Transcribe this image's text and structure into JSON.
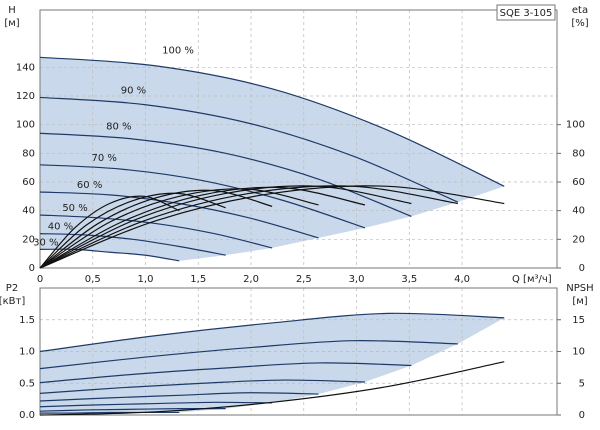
{
  "chart_data": [
    {
      "type": "line",
      "title": "SQE 3-105",
      "y_label": "H",
      "y_unit": "[м]",
      "y2_label": "eta",
      "y2_unit": "[%]",
      "x_label": "Q [м³/ч]",
      "xlim": [
        0,
        4.9
      ],
      "xticks": [
        0,
        {
          "value": 0.5,
          "label": "0,5"
        },
        {
          "value": 1,
          "label": "1,0"
        },
        {
          "value": 1.5,
          "label": "1,5"
        },
        {
          "value": 2,
          "label": "2,0"
        },
        {
          "value": 2.5,
          "label": "2,5"
        },
        {
          "value": 3,
          "label": "3,0"
        },
        {
          "value": 3.5,
          "label": "3,5"
        },
        {
          "value": 4,
          "label": "4,0"
        }
      ],
      "ylim": [
        0,
        180
      ],
      "yticks": [
        0,
        20,
        40,
        60,
        80,
        100,
        120,
        140
      ],
      "y2lim": [
        0,
        180
      ],
      "y2ticks": [
        0,
        20,
        40,
        60,
        80,
        100
      ],
      "grid": true,
      "shade_color": "#c9d9eb",
      "series": [
        {
          "name": "100 %",
          "color": "#1f3a68",
          "x": [
            0,
            1.1,
            2.2,
            3.3,
            4.4
          ],
          "values": [
            147,
            141,
            125,
            96,
            57
          ]
        },
        {
          "name": "90 %",
          "color": "#1f3a68",
          "x": [
            0,
            0.99,
            1.98,
            2.97,
            3.96
          ],
          "values": [
            119,
            114,
            101,
            78,
            46
          ]
        },
        {
          "name": "80 %",
          "color": "#1f3a68",
          "x": [
            0,
            0.88,
            1.76,
            2.64,
            3.52
          ],
          "values": [
            94,
            90,
            80,
            62,
            36
          ]
        },
        {
          "name": "70 %",
          "color": "#1f3a68",
          "x": [
            0,
            0.77,
            1.54,
            2.31,
            3.08
          ],
          "values": [
            72,
            69,
            61,
            47,
            28
          ]
        },
        {
          "name": "60 %",
          "color": "#1f3a68",
          "x": [
            0,
            0.66,
            1.32,
            1.98,
            2.64
          ],
          "values": [
            53,
            51,
            45,
            35,
            21
          ]
        },
        {
          "name": "50 %",
          "color": "#1f3a68",
          "x": [
            0,
            0.55,
            1.1,
            1.65,
            2.2
          ],
          "values": [
            37,
            35,
            31,
            24,
            14
          ]
        },
        {
          "name": "40 %",
          "color": "#1f3a68",
          "x": [
            0,
            0.44,
            0.88,
            1.32,
            1.76
          ],
          "values": [
            24,
            23,
            20,
            15,
            9
          ]
        },
        {
          "name": "30 %",
          "color": "#1f3a68",
          "x": [
            0,
            0.33,
            0.66,
            0.99,
            1.32
          ],
          "values": [
            13,
            13,
            11,
            9,
            5
          ]
        },
        {
          "color": "#111111",
          "axis": "y2",
          "x": [
            0,
            1.1,
            2.2,
            3.3,
            4.4
          ],
          "values": [
            0,
            33,
            52,
            57,
            45
          ]
        },
        {
          "color": "#111111",
          "axis": "y2",
          "x": [
            0,
            0.99,
            1.98,
            2.97,
            3.96
          ],
          "values": [
            0,
            33,
            52,
            57,
            45
          ]
        },
        {
          "color": "#111111",
          "axis": "y2",
          "x": [
            0,
            0.88,
            1.76,
            2.64,
            3.52
          ],
          "values": [
            0,
            33,
            52,
            57,
            45
          ]
        },
        {
          "color": "#111111",
          "axis": "y2",
          "x": [
            0,
            0.77,
            1.54,
            2.31,
            3.08
          ],
          "values": [
            0,
            32,
            51,
            56,
            44
          ]
        },
        {
          "color": "#111111",
          "axis": "y2",
          "x": [
            0,
            0.66,
            1.32,
            1.98,
            2.64
          ],
          "values": [
            0,
            32,
            50,
            55,
            44
          ]
        },
        {
          "color": "#111111",
          "axis": "y2",
          "x": [
            0,
            0.55,
            1.1,
            1.65,
            2.2
          ],
          "values": [
            0,
            31,
            49,
            54,
            43
          ]
        },
        {
          "color": "#111111",
          "axis": "y2",
          "x": [
            0,
            0.44,
            0.88,
            1.32,
            1.76
          ],
          "values": [
            0,
            30,
            47,
            52,
            42
          ]
        },
        {
          "color": "#111111",
          "axis": "y2",
          "x": [
            0,
            0.33,
            0.66,
            0.99,
            1.32
          ],
          "values": [
            0,
            28,
            45,
            50,
            40
          ]
        }
      ]
    },
    {
      "type": "line",
      "y_label": "P2",
      "y_unit": "[кВт]",
      "y2_label": "NPSH",
      "y2_unit": "[м]",
      "xlim": [
        0,
        4.9
      ],
      "xticks": [
        0,
        0.5,
        1,
        1.5,
        2,
        2.5,
        3,
        3.5,
        4
      ],
      "ylim": [
        0,
        2
      ],
      "yticks": [
        {
          "value": 0,
          "label": "0.0"
        },
        {
          "value": 0.5,
          "label": "0.5"
        },
        {
          "value": 1,
          "label": "1.0"
        },
        {
          "value": 1.5,
          "label": "1.5"
        }
      ],
      "y2lim": [
        0,
        20
      ],
      "y2ticks": [
        0,
        5,
        10,
        15
      ],
      "grid": true,
      "shade_color": "#c9d9eb",
      "series": [
        {
          "color": "#1f3a68",
          "x": [
            0,
            1.1,
            2.2,
            3.3,
            4.4
          ],
          "values": [
            1.0,
            1.25,
            1.45,
            1.6,
            1.53
          ]
        },
        {
          "color": "#1f3a68",
          "x": [
            0,
            0.99,
            1.98,
            2.97,
            3.96
          ],
          "values": [
            0.73,
            0.91,
            1.06,
            1.17,
            1.12
          ]
        },
        {
          "color": "#1f3a68",
          "x": [
            0,
            0.88,
            1.76,
            2.64,
            3.52
          ],
          "values": [
            0.51,
            0.64,
            0.74,
            0.82,
            0.78
          ]
        },
        {
          "color": "#1f3a68",
          "x": [
            0,
            0.77,
            1.54,
            2.31,
            3.08
          ],
          "values": [
            0.34,
            0.43,
            0.5,
            0.55,
            0.52
          ]
        },
        {
          "color": "#1f3a68",
          "x": [
            0,
            0.66,
            1.32,
            1.98,
            2.64
          ],
          "values": [
            0.22,
            0.27,
            0.31,
            0.35,
            0.33
          ]
        },
        {
          "color": "#1f3a68",
          "x": [
            0,
            0.55,
            1.1,
            1.65,
            2.2
          ],
          "values": [
            0.13,
            0.16,
            0.18,
            0.2,
            0.19
          ]
        },
        {
          "color": "#1f3a68",
          "x": [
            0,
            0.44,
            0.88,
            1.32,
            1.76
          ],
          "values": [
            0.06,
            0.08,
            0.09,
            0.1,
            0.1
          ]
        },
        {
          "color": "#1f3a68",
          "x": [
            0,
            0.33,
            0.66,
            0.99,
            1.32
          ],
          "values": [
            0.03,
            0.03,
            0.04,
            0.04,
            0.04
          ]
        },
        {
          "color": "#111111",
          "axis": "y2",
          "x": [
            0,
            1.1,
            2.2,
            3.3,
            4.4
          ],
          "values": [
            0,
            0.5,
            2,
            4.5,
            8.4
          ]
        }
      ]
    }
  ]
}
